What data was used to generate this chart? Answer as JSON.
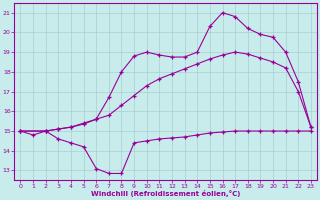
{
  "xlabel": "Windchill (Refroidissement éolien,°C)",
  "bg_color": "#c8ecec",
  "line_color": "#990099",
  "grid_color": "#a8cece",
  "xlim": [
    -0.5,
    23.5
  ],
  "ylim": [
    12.5,
    21.5
  ],
  "xticks": [
    0,
    1,
    2,
    3,
    4,
    5,
    6,
    7,
    8,
    9,
    10,
    11,
    12,
    13,
    14,
    15,
    16,
    17,
    18,
    19,
    20,
    21,
    22,
    23
  ],
  "yticks": [
    13,
    14,
    15,
    16,
    17,
    18,
    19,
    20,
    21
  ],
  "line1_x": [
    0,
    1,
    2,
    3,
    4,
    5,
    6,
    7,
    8,
    9,
    10,
    11,
    12,
    13,
    14,
    15,
    16,
    17,
    18,
    19,
    20,
    21,
    22,
    23
  ],
  "line1_y": [
    15.0,
    14.8,
    15.0,
    14.6,
    14.4,
    14.2,
    13.1,
    12.85,
    12.85,
    14.4,
    14.5,
    14.6,
    14.65,
    14.7,
    14.8,
    14.9,
    14.95,
    15.0,
    15.0,
    15.0,
    15.0,
    15.0,
    15.0,
    15.0
  ],
  "line2_x": [
    0,
    2,
    3,
    4,
    5,
    6,
    7,
    8,
    9,
    10,
    11,
    12,
    13,
    14,
    15,
    16,
    17,
    18,
    19,
    20,
    21,
    22,
    23
  ],
  "line2_y": [
    15.0,
    15.0,
    15.1,
    15.2,
    15.4,
    15.6,
    15.8,
    16.3,
    16.8,
    17.3,
    17.65,
    17.9,
    18.15,
    18.4,
    18.65,
    18.85,
    19.0,
    18.9,
    18.7,
    18.5,
    18.2,
    17.0,
    15.2
  ],
  "line3_x": [
    0,
    2,
    3,
    4,
    5,
    6,
    7,
    8,
    9,
    10,
    11,
    12,
    13,
    14,
    15,
    16,
    17,
    18,
    19,
    20,
    21,
    22,
    23
  ],
  "line3_y": [
    15.0,
    15.0,
    15.1,
    15.2,
    15.35,
    15.6,
    16.7,
    18.0,
    18.8,
    19.0,
    18.85,
    18.75,
    18.75,
    19.0,
    20.3,
    21.0,
    20.8,
    20.2,
    19.9,
    19.75,
    19.0,
    17.5,
    15.2
  ]
}
